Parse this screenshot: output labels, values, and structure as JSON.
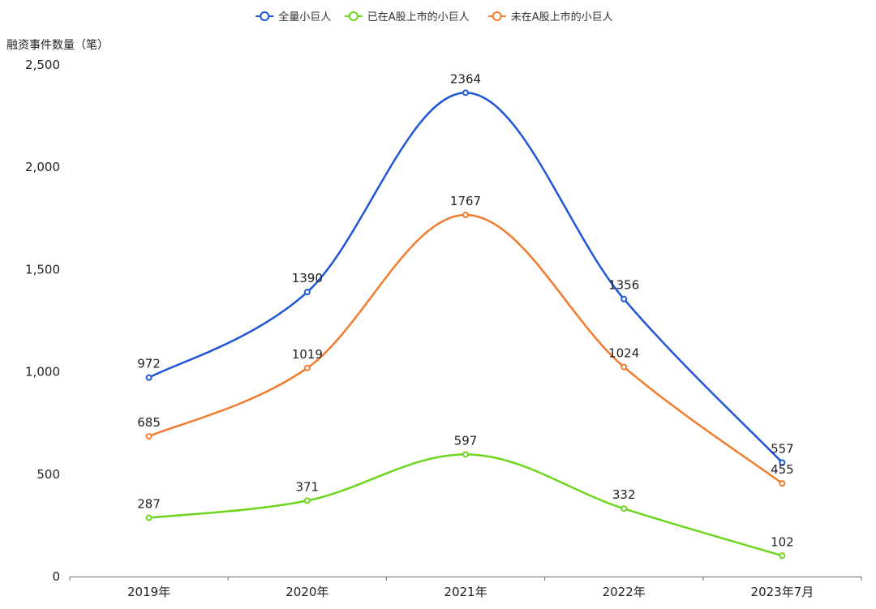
{
  "chart_data": {
    "type": "line",
    "title": "",
    "xlabel": "",
    "ylabel": "融资事件数量（笔）",
    "categories": [
      "2019年",
      "2020年",
      "2021年",
      "2022年",
      "2023年7月"
    ],
    "ylim": [
      0,
      2500
    ],
    "yticks": [
      0,
      500,
      1000,
      1500,
      2000,
      2500
    ],
    "ytick_labels": [
      "0",
      "500",
      "1,000",
      "1,500",
      "2,000",
      "2,500"
    ],
    "legend_position": "top-center",
    "grid": false,
    "series": [
      {
        "name": "全量小巨人",
        "color": "#1f55d6",
        "values": [
          972,
          1390,
          2364,
          1356,
          557
        ]
      },
      {
        "name": "已在A股上市的小巨人",
        "color": "#6cd61f",
        "values": [
          287,
          371,
          597,
          332,
          102
        ]
      },
      {
        "name": "未在A股上市的小巨人",
        "color": "#f27b2c",
        "values": [
          685,
          1019,
          1767,
          1024,
          455
        ]
      }
    ]
  }
}
